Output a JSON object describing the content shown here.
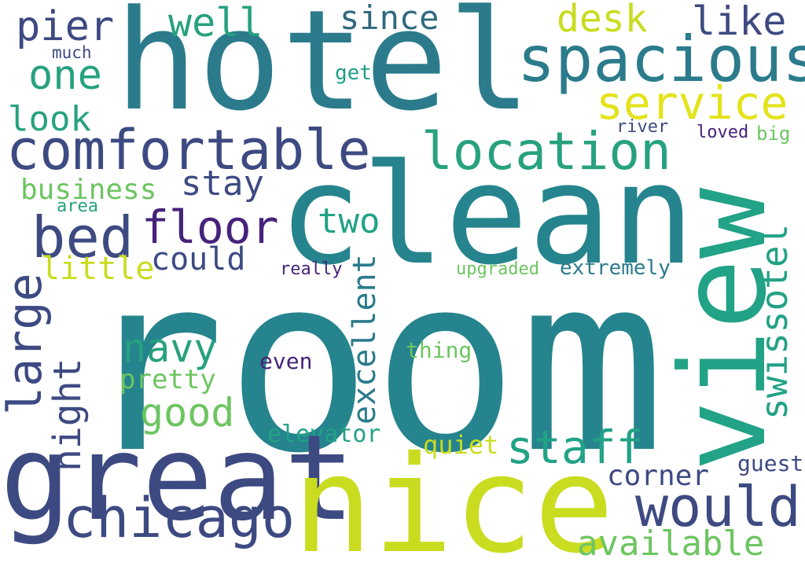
{
  "words": {
    "room": "room",
    "hotel": "hotel",
    "clean": "clean",
    "view": "view",
    "great": "great",
    "nice": "nice",
    "spacious": "spacious",
    "comfortable": "comfortable",
    "location": "location",
    "service": "service",
    "bed": "bed",
    "floor": "floor",
    "chicago": "chicago",
    "would": "would",
    "staff": "staff",
    "swissotel": "swissotel",
    "large": "large",
    "navy": "navy",
    "good": "good",
    "night": "night",
    "pier": "pier",
    "well": "well",
    "since": "since",
    "desk": "desk",
    "like": "like",
    "one": "one",
    "look": "look",
    "stay": "stay",
    "business": "business",
    "two": "two",
    "could": "could",
    "little": "little",
    "corner": "corner",
    "available": "available",
    "excellent": "excellent",
    "elevator": "elevator",
    "pretty": "pretty",
    "quiet": "quiet",
    "thing": "thing",
    "even": "even",
    "really": "really",
    "upgraded": "upgraded",
    "extremely": "extremely",
    "river": "river",
    "loved": "loved",
    "big": "big",
    "get": "get",
    "much": "much",
    "area": "area",
    "guest": "guest"
  }
}
